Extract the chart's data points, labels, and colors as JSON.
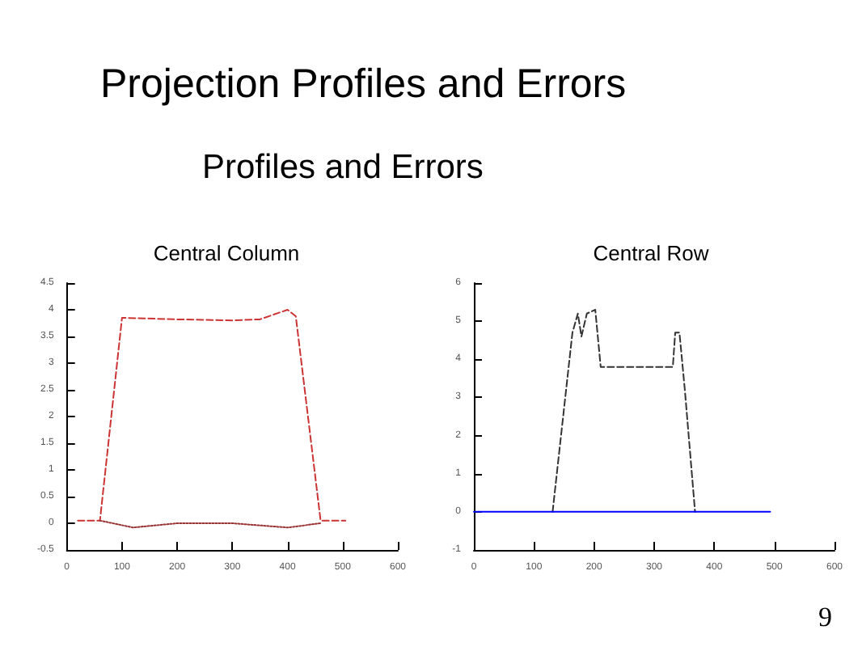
{
  "chart_data": [
    {
      "type": "line",
      "title": "Central Column",
      "annotations": [
        "Projection Profiles and Errors",
        "Profiles and Errors",
        "9"
      ],
      "xlim": [
        0,
        600
      ],
      "xticks": [
        0,
        100,
        200,
        300,
        400,
        500,
        600
      ],
      "ylim": [
        -0.5,
        4.5
      ],
      "yticks": [
        -0.5,
        0,
        0.5,
        1,
        1.5,
        2,
        2.5,
        3,
        3.5,
        4,
        4.5
      ],
      "grid": false,
      "marker": "none",
      "series": [
        {
          "color": "#cc3333",
          "line_style": "dashed",
          "x": [
            20,
            60,
            100,
            200,
            300,
            350,
            400,
            415,
            460,
            505
          ],
          "values": [
            0.05,
            0.05,
            3.85,
            3.82,
            3.8,
            3.82,
            4.0,
            3.88,
            0.05,
            0.05
          ]
        },
        {
          "color": "#993333",
          "line_style": "dotted",
          "x": [
            60,
            120,
            200,
            300,
            400,
            460
          ],
          "values": [
            0.05,
            -0.08,
            0,
            0,
            -0.08,
            0
          ]
        }
      ]
    },
    {
      "type": "line",
      "title": "Central Row",
      "xlim": [
        0,
        600
      ],
      "xticks": [
        0,
        100,
        200,
        300,
        400,
        500,
        600
      ],
      "ylim": [
        -1,
        6
      ],
      "yticks": [
        -1,
        0,
        1,
        2,
        3,
        4,
        5,
        6
      ],
      "grid": false,
      "marker": "none",
      "series": [
        {
          "color": "#333333",
          "line_style": "dashed",
          "x": [
            131,
            164,
            173,
            179,
            188,
            202,
            211,
            295,
            315,
            331,
            335,
            342,
            351,
            368
          ],
          "values": [
            0,
            4.7,
            5.2,
            4.6,
            5.2,
            5.3,
            3.8,
            3.8,
            3.8,
            3.8,
            4.7,
            4.7,
            3.2,
            0
          ]
        },
        {
          "color": "#0000ff",
          "line_style": "solid",
          "x": [
            0,
            493
          ],
          "values": [
            0,
            0
          ]
        }
      ]
    }
  ]
}
